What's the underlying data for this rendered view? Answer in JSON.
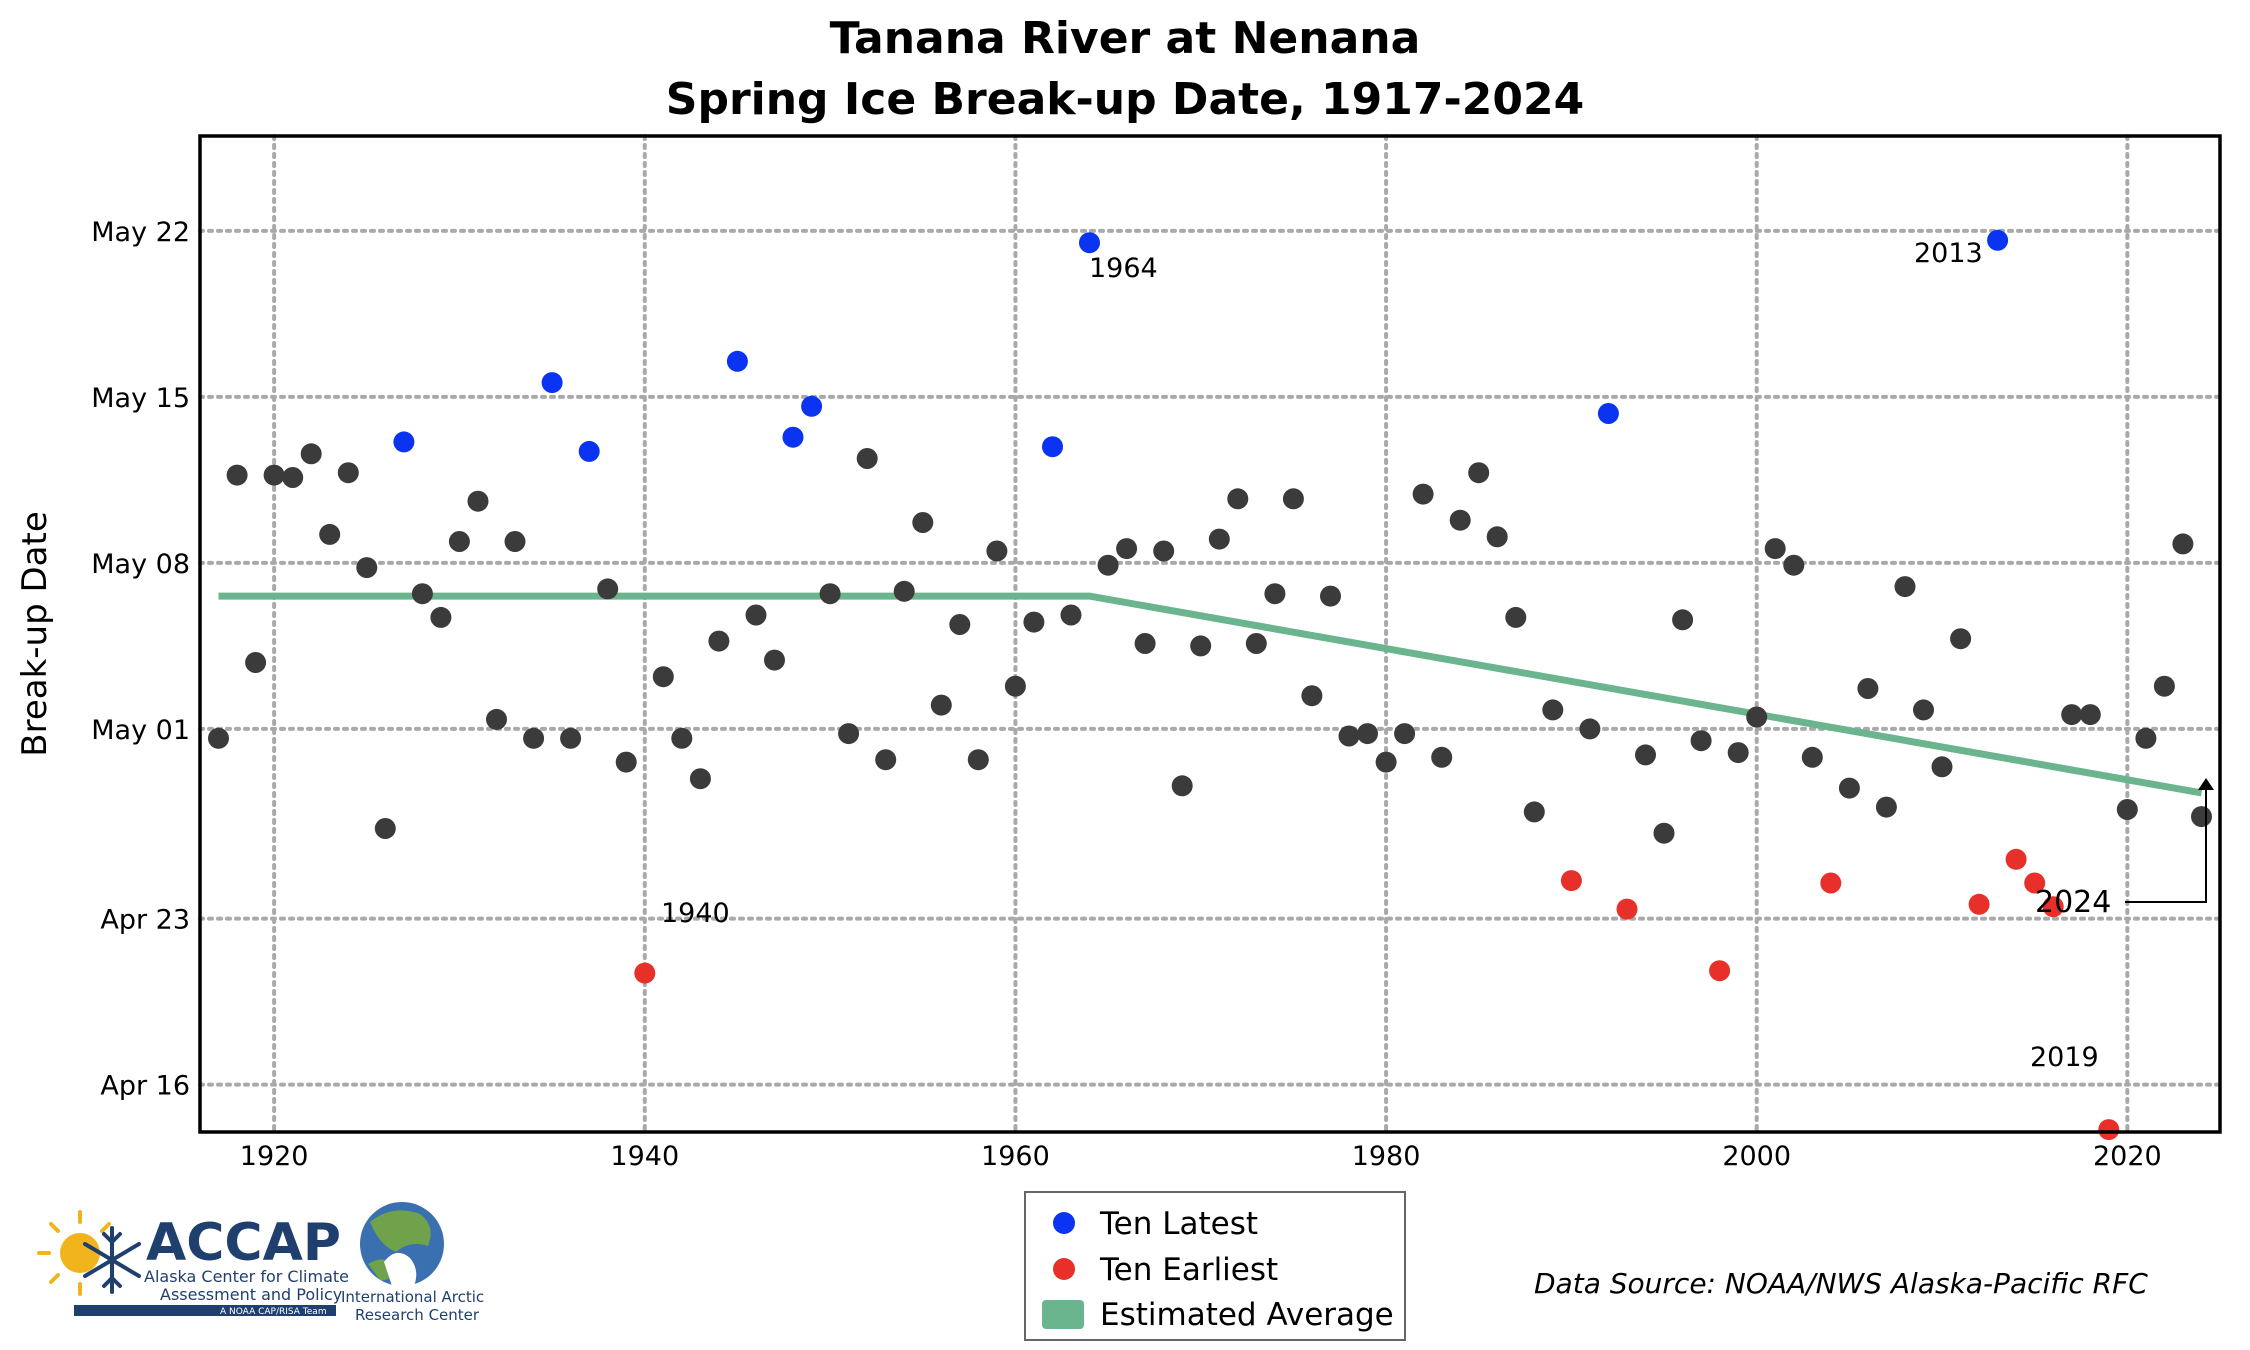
{
  "chart_data": {
    "type": "scatter",
    "title": "Tanana River at Nenana",
    "subtitle": "Spring Ice Break-up Date, 1917-2024",
    "ylabel": "Break-up Date",
    "xlabel": "",
    "xlim": [
      1916,
      2025
    ],
    "ylim": [
      104,
      146
    ],
    "x_ticks": [
      1920,
      1940,
      1960,
      1980,
      2000,
      2020
    ],
    "y_ticks": [
      {
        "label": "May 22",
        "value": 142
      },
      {
        "label": "May 15",
        "value": 135
      },
      {
        "label": "May 08",
        "value": 128
      },
      {
        "label": "May 01",
        "value": 121
      },
      {
        "label": "Apr 23",
        "value": 113
      },
      {
        "label": "Apr 16",
        "value": 106
      }
    ],
    "y_unit_note": "day of year",
    "grid": true,
    "series": [
      {
        "name": "Ten Latest",
        "color": "#0a33f2",
        "points": [
          {
            "x": 1927,
            "y": 133.1
          },
          {
            "x": 1935,
            "y": 135.6
          },
          {
            "x": 1937,
            "y": 132.7
          },
          {
            "x": 1945,
            "y": 136.5
          },
          {
            "x": 1948,
            "y": 133.3
          },
          {
            "x": 1949,
            "y": 134.6
          },
          {
            "x": 1962,
            "y": 132.9
          },
          {
            "x": 1964,
            "y": 141.5
          },
          {
            "x": 1992,
            "y": 134.3
          },
          {
            "x": 2013,
            "y": 141.6
          }
        ]
      },
      {
        "name": "Ten Earliest",
        "color": "#e8302a",
        "points": [
          {
            "x": 1940,
            "y": 110.7
          },
          {
            "x": 1990,
            "y": 114.6
          },
          {
            "x": 1993,
            "y": 113.4
          },
          {
            "x": 1998,
            "y": 110.8
          },
          {
            "x": 2004,
            "y": 114.5
          },
          {
            "x": 2012,
            "y": 113.6
          },
          {
            "x": 2014,
            "y": 115.5
          },
          {
            "x": 2015,
            "y": 114.5
          },
          {
            "x": 2016,
            "y": 113.5
          },
          {
            "x": 2019,
            "y": 104.1
          }
        ]
      },
      {
        "name": "",
        "color": "#3b3b3b",
        "points": [
          {
            "x": 1917,
            "y": 120.6
          },
          {
            "x": 1918,
            "y": 131.7
          },
          {
            "x": 1919,
            "y": 123.8
          },
          {
            "x": 1920,
            "y": 131.7
          },
          {
            "x": 1921,
            "y": 131.6
          },
          {
            "x": 1922,
            "y": 132.6
          },
          {
            "x": 1923,
            "y": 129.2
          },
          {
            "x": 1924,
            "y": 131.8
          },
          {
            "x": 1925,
            "y": 127.8
          },
          {
            "x": 1926,
            "y": 116.8
          },
          {
            "x": 1928,
            "y": 126.7
          },
          {
            "x": 1929,
            "y": 125.7
          },
          {
            "x": 1930,
            "y": 128.9
          },
          {
            "x": 1931,
            "y": 130.6
          },
          {
            "x": 1932,
            "y": 121.4
          },
          {
            "x": 1933,
            "y": 128.9
          },
          {
            "x": 1934,
            "y": 120.6
          },
          {
            "x": 1936,
            "y": 120.6
          },
          {
            "x": 1938,
            "y": 126.9
          },
          {
            "x": 1939,
            "y": 119.6
          },
          {
            "x": 1941,
            "y": 123.2
          },
          {
            "x": 1942,
            "y": 120.6
          },
          {
            "x": 1943,
            "y": 118.9
          },
          {
            "x": 1944,
            "y": 124.7
          },
          {
            "x": 1946,
            "y": 125.8
          },
          {
            "x": 1947,
            "y": 123.9
          },
          {
            "x": 1950,
            "y": 126.7
          },
          {
            "x": 1951,
            "y": 120.8
          },
          {
            "x": 1952,
            "y": 132.4
          },
          {
            "x": 1953,
            "y": 119.7
          },
          {
            "x": 1954,
            "y": 126.8
          },
          {
            "x": 1955,
            "y": 129.7
          },
          {
            "x": 1956,
            "y": 122.0
          },
          {
            "x": 1957,
            "y": 125.4
          },
          {
            "x": 1958,
            "y": 119.7
          },
          {
            "x": 1959,
            "y": 128.5
          },
          {
            "x": 1960,
            "y": 122.8
          },
          {
            "x": 1961,
            "y": 125.5
          },
          {
            "x": 1963,
            "y": 125.8
          },
          {
            "x": 1965,
            "y": 127.9
          },
          {
            "x": 1966,
            "y": 128.6
          },
          {
            "x": 1967,
            "y": 124.6
          },
          {
            "x": 1968,
            "y": 128.5
          },
          {
            "x": 1969,
            "y": 118.6
          },
          {
            "x": 1970,
            "y": 124.5
          },
          {
            "x": 1971,
            "y": 129.0
          },
          {
            "x": 1972,
            "y": 130.7
          },
          {
            "x": 1973,
            "y": 124.6
          },
          {
            "x": 1974,
            "y": 126.7
          },
          {
            "x": 1975,
            "y": 130.7
          },
          {
            "x": 1976,
            "y": 122.4
          },
          {
            "x": 1977,
            "y": 126.6
          },
          {
            "x": 1978,
            "y": 120.7
          },
          {
            "x": 1979,
            "y": 120.8
          },
          {
            "x": 1980,
            "y": 119.6
          },
          {
            "x": 1981,
            "y": 120.8
          },
          {
            "x": 1982,
            "y": 130.9
          },
          {
            "x": 1983,
            "y": 119.8
          },
          {
            "x": 1984,
            "y": 129.8
          },
          {
            "x": 1985,
            "y": 131.8
          },
          {
            "x": 1986,
            "y": 129.1
          },
          {
            "x": 1987,
            "y": 125.7
          },
          {
            "x": 1988,
            "y": 117.5
          },
          {
            "x": 1989,
            "y": 121.8
          },
          {
            "x": 1991,
            "y": 121.0
          },
          {
            "x": 1994,
            "y": 119.9
          },
          {
            "x": 1995,
            "y": 116.6
          },
          {
            "x": 1996,
            "y": 125.6
          },
          {
            "x": 1997,
            "y": 120.5
          },
          {
            "x": 1999,
            "y": 120.0
          },
          {
            "x": 2000,
            "y": 121.5
          },
          {
            "x": 2001,
            "y": 128.6
          },
          {
            "x": 2002,
            "y": 127.9
          },
          {
            "x": 2003,
            "y": 119.8
          },
          {
            "x": 2005,
            "y": 118.5
          },
          {
            "x": 2006,
            "y": 122.7
          },
          {
            "x": 2007,
            "y": 117.7
          },
          {
            "x": 2008,
            "y": 127.0
          },
          {
            "x": 2009,
            "y": 121.8
          },
          {
            "x": 2010,
            "y": 119.4
          },
          {
            "x": 2011,
            "y": 124.8
          },
          {
            "x": 2017,
            "y": 121.6
          },
          {
            "x": 2018,
            "y": 121.6
          },
          {
            "x": 2020,
            "y": 117.6
          },
          {
            "x": 2021,
            "y": 120.6
          },
          {
            "x": 2022,
            "y": 122.8
          },
          {
            "x": 2023,
            "y": 128.8
          },
          {
            "x": 2024,
            "y": 117.3
          }
        ]
      },
      {
        "name": "Estimated Average",
        "color": "#6ab48e",
        "type": "line",
        "points": [
          {
            "x": 1917,
            "y": 126.6
          },
          {
            "x": 1964,
            "y": 126.6
          },
          {
            "x": 2024,
            "y": 118.3
          }
        ]
      }
    ],
    "annotations": [
      {
        "text": "1964",
        "x": 1964,
        "y": 141.5,
        "kind": "point-label"
      },
      {
        "text": "2013",
        "x": 2013,
        "y": 141.6,
        "kind": "point-label"
      },
      {
        "text": "1940",
        "x": 1940,
        "y": 110.7,
        "kind": "point-label"
      },
      {
        "text": "2019",
        "x": 2019,
        "y": 104.1,
        "kind": "point-label"
      },
      {
        "text": "2024",
        "x": 2024,
        "y": 117.3,
        "kind": "arrow-callout"
      }
    ],
    "legend": {
      "placement": "bottom-center",
      "entries": [
        {
          "label": "Ten Latest",
          "color": "#0a33f2",
          "shape": "circle"
        },
        {
          "label": "Ten Earliest",
          "color": "#e8302a",
          "shape": "circle"
        },
        {
          "label": "Estimated Average",
          "color": "#6ab48e",
          "shape": "rounded-rect"
        }
      ]
    },
    "source": "Data Source: NOAA/NWS Alaska-Pacific RFC"
  },
  "logos": {
    "accap_name": "ACCAP",
    "accap_line1": "Alaska Center for Climate",
    "accap_line2": "Assessment and Policy",
    "accap_bar": "A NOAA CAP/RISA Team",
    "iarc_line1": "International Arctic",
    "iarc_line2": "Research Center"
  },
  "colors": {
    "axis": "#000000",
    "grid": "#a9a9a9",
    "normal_point": "#3b3b3b",
    "latest": "#0a33f2",
    "earliest": "#e8302a",
    "trend": "#6ab48e"
  }
}
